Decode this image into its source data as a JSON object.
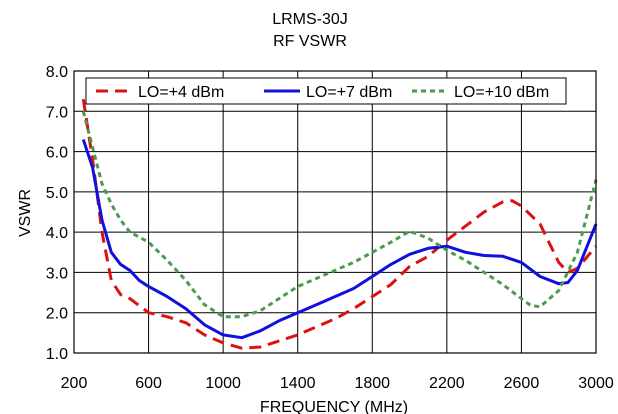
{
  "chart_data": {
    "type": "line",
    "title": "LRMS-30J",
    "subtitle": "RF VSWR",
    "xlabel": "FREQUENCY (MHz)",
    "ylabel": "VSWR",
    "xlim": [
      200,
      3000
    ],
    "ylim": [
      1.0,
      8.0
    ],
    "xticks": [
      200,
      600,
      1000,
      1400,
      1800,
      2200,
      2600,
      3000
    ],
    "xtick_labels": [
      "200",
      "600",
      "1000",
      "1400",
      "1800",
      "2200",
      "2600",
      "3000"
    ],
    "yticks": [
      1.0,
      2.0,
      3.0,
      4.0,
      5.0,
      6.0,
      7.0,
      8.0
    ],
    "ytick_labels": [
      "1.0",
      "2.0",
      "3.0",
      "4.0",
      "5.0",
      "6.0",
      "7.0",
      "8.0"
    ],
    "grid": true,
    "legend_position": "top",
    "series": [
      {
        "name": "LO=+4 dBm",
        "color": "#dd1111",
        "dash": "dashed",
        "points": [
          [
            250,
            7.3
          ],
          [
            300,
            5.8
          ],
          [
            350,
            4.0
          ],
          [
            400,
            2.8
          ],
          [
            450,
            2.45
          ],
          [
            500,
            2.35
          ],
          [
            600,
            2.0
          ],
          [
            700,
            1.9
          ],
          [
            800,
            1.75
          ],
          [
            900,
            1.45
          ],
          [
            1000,
            1.25
          ],
          [
            1100,
            1.12
          ],
          [
            1200,
            1.15
          ],
          [
            1300,
            1.3
          ],
          [
            1400,
            1.45
          ],
          [
            1500,
            1.65
          ],
          [
            1600,
            1.85
          ],
          [
            1700,
            2.1
          ],
          [
            1800,
            2.4
          ],
          [
            1900,
            2.7
          ],
          [
            2000,
            3.15
          ],
          [
            2100,
            3.4
          ],
          [
            2200,
            3.8
          ],
          [
            2300,
            4.15
          ],
          [
            2400,
            4.5
          ],
          [
            2500,
            4.75
          ],
          [
            2550,
            4.78
          ],
          [
            2600,
            4.65
          ],
          [
            2700,
            4.2
          ],
          [
            2800,
            3.25
          ],
          [
            2850,
            3.0
          ],
          [
            2900,
            3.1
          ],
          [
            3000,
            3.65
          ]
        ]
      },
      {
        "name": "LO=+7 dBm",
        "color": "#1010dd",
        "dash": "solid",
        "points": [
          [
            250,
            6.3
          ],
          [
            300,
            5.6
          ],
          [
            350,
            4.3
          ],
          [
            400,
            3.5
          ],
          [
            450,
            3.2
          ],
          [
            500,
            3.05
          ],
          [
            550,
            2.8
          ],
          [
            600,
            2.65
          ],
          [
            700,
            2.4
          ],
          [
            800,
            2.1
          ],
          [
            900,
            1.7
          ],
          [
            1000,
            1.45
          ],
          [
            1100,
            1.38
          ],
          [
            1200,
            1.55
          ],
          [
            1300,
            1.8
          ],
          [
            1400,
            2.0
          ],
          [
            1500,
            2.2
          ],
          [
            1600,
            2.4
          ],
          [
            1700,
            2.6
          ],
          [
            1800,
            2.9
          ],
          [
            1900,
            3.2
          ],
          [
            2000,
            3.45
          ],
          [
            2100,
            3.6
          ],
          [
            2200,
            3.65
          ],
          [
            2300,
            3.5
          ],
          [
            2400,
            3.42
          ],
          [
            2500,
            3.4
          ],
          [
            2600,
            3.25
          ],
          [
            2700,
            2.9
          ],
          [
            2800,
            2.72
          ],
          [
            2850,
            2.75
          ],
          [
            2900,
            3.05
          ],
          [
            3000,
            4.2
          ]
        ]
      },
      {
        "name": "LO=+10 dBm",
        "color": "#4c9a4c",
        "dash": "dotted",
        "points": [
          [
            250,
            7.0
          ],
          [
            300,
            6.1
          ],
          [
            350,
            5.2
          ],
          [
            400,
            4.7
          ],
          [
            450,
            4.3
          ],
          [
            500,
            4.0
          ],
          [
            600,
            3.75
          ],
          [
            700,
            3.3
          ],
          [
            800,
            2.8
          ],
          [
            900,
            2.2
          ],
          [
            1000,
            1.9
          ],
          [
            1100,
            1.9
          ],
          [
            1200,
            2.05
          ],
          [
            1300,
            2.35
          ],
          [
            1400,
            2.65
          ],
          [
            1500,
            2.85
          ],
          [
            1600,
            3.05
          ],
          [
            1700,
            3.25
          ],
          [
            1800,
            3.5
          ],
          [
            1900,
            3.75
          ],
          [
            2000,
            4.02
          ],
          [
            2100,
            3.85
          ],
          [
            2200,
            3.55
          ],
          [
            2300,
            3.3
          ],
          [
            2400,
            3.0
          ],
          [
            2500,
            2.7
          ],
          [
            2600,
            2.35
          ],
          [
            2650,
            2.18
          ],
          [
            2700,
            2.15
          ],
          [
            2800,
            2.55
          ],
          [
            2900,
            3.5
          ],
          [
            3000,
            5.3
          ]
        ]
      }
    ]
  }
}
